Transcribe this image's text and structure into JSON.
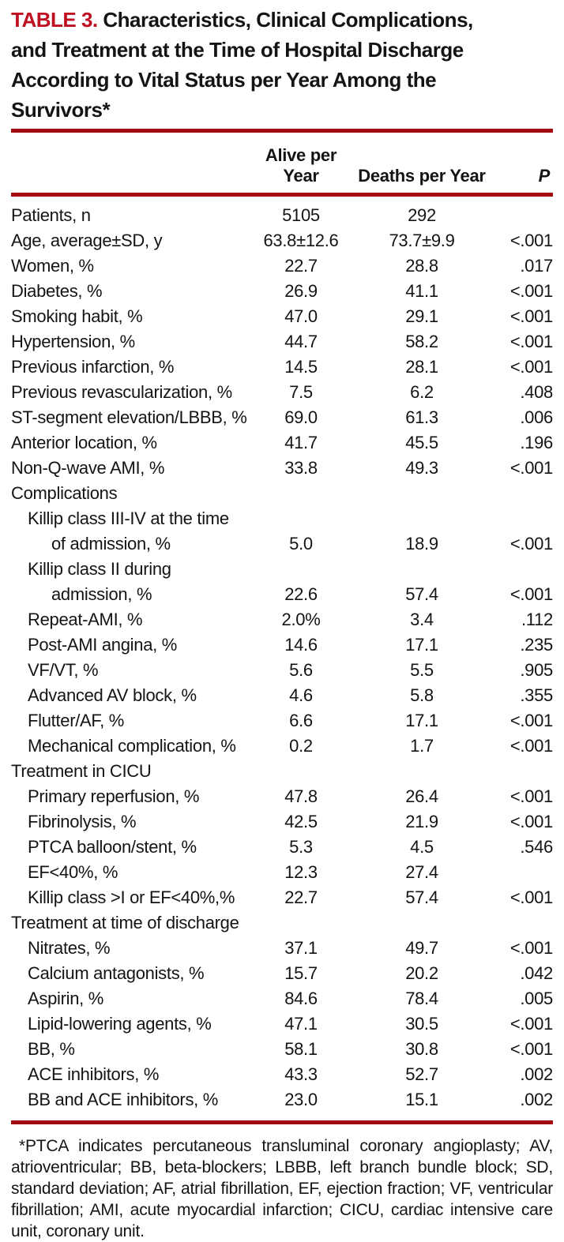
{
  "title": {
    "label": "TABLE 3.",
    "rest": "Characteristics, Clinical Complications,\nand Treatment at the Time of Hospital Discharge\nAccording to Vital Status per Year Among the\nSurvivors*"
  },
  "colors": {
    "accent_red": "#bf1022",
    "rule_red": "#a20a10",
    "text": "#141414"
  },
  "chart_data": {
    "type": "table",
    "title": "TABLE 3. Characteristics, Clinical Complications, and Treatment at the Time of Hospital Discharge According to Vital Status per Year Among the Survivors*",
    "columns": [
      "",
      "Alive per Year",
      "Deaths per Year",
      "P"
    ]
  },
  "table": {
    "columns": [
      "",
      "Alive per Year",
      "Deaths per Year",
      "P"
    ],
    "rows": [
      {
        "label": "Patients, n",
        "indent": 0,
        "alive": "5105",
        "deaths": "292",
        "p": ""
      },
      {
        "label": "Age, average±SD, y",
        "indent": 0,
        "alive": "63.8±12.6",
        "deaths": "73.7±9.9",
        "p": "<.001"
      },
      {
        "label": "Women, %",
        "indent": 0,
        "alive": "22.7",
        "deaths": "28.8",
        "p": ".017"
      },
      {
        "label": "Diabetes, %",
        "indent": 0,
        "alive": "26.9",
        "deaths": "41.1",
        "p": "<.001"
      },
      {
        "label": "Smoking habit, %",
        "indent": 0,
        "alive": "47.0",
        "deaths": "29.1",
        "p": "<.001"
      },
      {
        "label": "Hypertension, %",
        "indent": 0,
        "alive": "44.7",
        "deaths": "58.2",
        "p": "<.001"
      },
      {
        "label": "Previous infarction, %",
        "indent": 0,
        "alive": "14.5",
        "deaths": "28.1",
        "p": "<.001"
      },
      {
        "label": "Previous revascularization, %",
        "indent": 0,
        "alive": "7.5",
        "deaths": "6.2",
        "p": ".408"
      },
      {
        "label": "ST-segment elevation/LBBB, %",
        "indent": 0,
        "alive": "69.0",
        "deaths": "61.3",
        "p": ".006"
      },
      {
        "label": "Anterior location, %",
        "indent": 0,
        "alive": "41.7",
        "deaths": "45.5",
        "p": ".196"
      },
      {
        "label": "Non-Q-wave AMI, %",
        "indent": 0,
        "alive": "33.8",
        "deaths": "49.3",
        "p": "<.001"
      },
      {
        "label": "Complications",
        "indent": 0,
        "alive": "",
        "deaths": "",
        "p": ""
      },
      {
        "label": "Killip class III-IV at the time",
        "label2": "of admission, %",
        "indent": 1,
        "alive": "5.0",
        "deaths": "18.9",
        "p": "<.001"
      },
      {
        "label": "Killip class II during",
        "label2": "admission, %",
        "indent": 1,
        "alive": "22.6",
        "deaths": "57.4",
        "p": "<.001"
      },
      {
        "label": "Repeat-AMI, %",
        "indent": 1,
        "alive": "2.0%",
        "deaths": "3.4",
        "p": ".112"
      },
      {
        "label": "Post-AMI angina, %",
        "indent": 1,
        "alive": "14.6",
        "deaths": "17.1",
        "p": ".235"
      },
      {
        "label": "VF/VT, %",
        "indent": 1,
        "alive": "5.6",
        "deaths": "5.5",
        "p": ".905"
      },
      {
        "label": "Advanced AV block, %",
        "indent": 1,
        "alive": "4.6",
        "deaths": "5.8",
        "p": ".355"
      },
      {
        "label": "Flutter/AF, %",
        "indent": 1,
        "alive": "6.6",
        "deaths": "17.1",
        "p": "<.001"
      },
      {
        "label": "Mechanical complication, %",
        "indent": 1,
        "alive": "0.2",
        "deaths": "1.7",
        "p": "<.001"
      },
      {
        "label": "Treatment in CICU",
        "indent": 0,
        "alive": "",
        "deaths": "",
        "p": ""
      },
      {
        "label": "Primary reperfusion, %",
        "indent": 1,
        "alive": "47.8",
        "deaths": "26.4",
        "p": "<.001"
      },
      {
        "label": "Fibrinolysis, %",
        "indent": 1,
        "alive": "42.5",
        "deaths": "21.9",
        "p": "<.001"
      },
      {
        "label": "PTCA balloon/stent, %",
        "indent": 1,
        "alive": "5.3",
        "deaths": "4.5",
        "p": ".546"
      },
      {
        "label": "EF<40%, %",
        "indent": 1,
        "alive": "12.3",
        "deaths": "27.4",
        "p": ""
      },
      {
        "label": "Killip class >I or EF<40%,%",
        "indent": 1,
        "alive": "22.7",
        "deaths": "57.4",
        "p": "<.001"
      },
      {
        "label": "Treatment at time of discharge",
        "indent": 0,
        "alive": "",
        "deaths": "",
        "p": ""
      },
      {
        "label": "Nitrates, %",
        "indent": 1,
        "alive": "37.1",
        "deaths": "49.7",
        "p": "<.001"
      },
      {
        "label": "Calcium antagonists, %",
        "indent": 1,
        "alive": "15.7",
        "deaths": "20.2",
        "p": ".042"
      },
      {
        "label": "Aspirin, %",
        "indent": 1,
        "alive": "84.6",
        "deaths": "78.4",
        "p": ".005"
      },
      {
        "label": "Lipid-lowering agents, %",
        "indent": 1,
        "alive": "47.1",
        "deaths": "30.5",
        "p": "<.001"
      },
      {
        "label": "BB, %",
        "indent": 1,
        "alive": "58.1",
        "deaths": "30.8",
        "p": "<.001"
      },
      {
        "label": "ACE inhibitors, %",
        "indent": 1,
        "alive": "43.3",
        "deaths": "52.7",
        "p": ".002"
      },
      {
        "label": "BB and ACE inhibitors, %",
        "indent": 1,
        "alive": "23.0",
        "deaths": "15.1",
        "p": ".002"
      }
    ]
  },
  "footnote": "*PTCA indicates percutaneous transluminal coronary angioplasty; AV, atrioventricular; BB, beta-blockers; LBBB, left branch bundle block; SD, standard deviation; AF, atrial fibrillation, EF, ejection fraction; VF, ventricular fibrillation; AMI, acute myocardial infarction; CICU, cardiac intensive care unit, coronary unit."
}
